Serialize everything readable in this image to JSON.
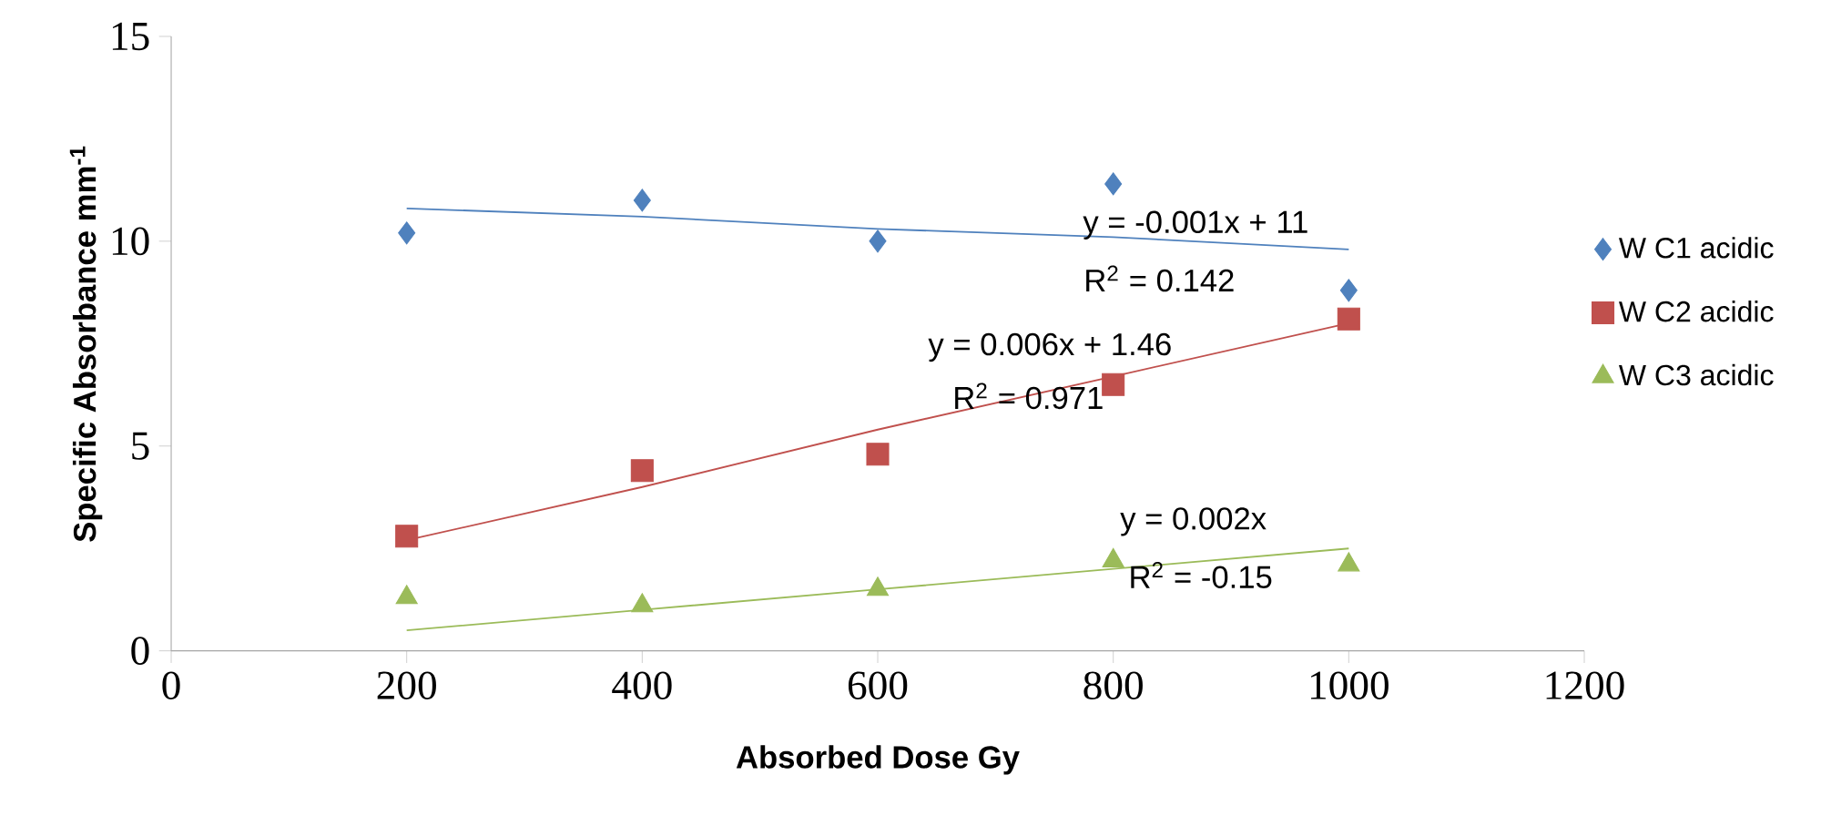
{
  "chart_data": {
    "type": "scatter",
    "xlabel": "Absorbed Dose Gy",
    "ylabel": "Specific Absorbance mm$^{-1}$",
    "x": [
      200,
      400,
      600,
      800,
      1000
    ],
    "series": [
      {
        "name": "W C1 acidic",
        "color": "#4f81bd",
        "marker": "diamond",
        "values": [
          10.2,
          11.0,
          10.0,
          11.4,
          8.8
        ]
      },
      {
        "name": "W C2 acidic",
        "color": "#c0504d",
        "marker": "square",
        "values": [
          2.8,
          4.4,
          4.8,
          6.5,
          8.1
        ]
      },
      {
        "name": "W C3 acidic",
        "color": "#9bbb59",
        "marker": "triangle",
        "values": [
          1.3,
          1.1,
          1.5,
          2.2,
          2.1
        ]
      },
      {
        "type": "line",
        "color": "#4f81bd",
        "marker": "none",
        "values": [
          10.8,
          10.6,
          10.3,
          10.1,
          9.8
        ]
      },
      {
        "type": "line",
        "color": "#c0504d",
        "marker": "none",
        "values": [
          2.7,
          4.0,
          5.4,
          6.7,
          8.0
        ]
      },
      {
        "type": "line",
        "color": "#9bbb59",
        "marker": "none",
        "values": [
          0.5,
          1.0,
          1.5,
          2.0,
          2.5
        ]
      }
    ],
    "annotations": [
      "y = -0.001x + 11",
      "R$^{2}$ = 0.142",
      "y = 0.006x + 1.46",
      "R$^{2}$ = 0.971",
      "y = 0.002x",
      "R$^{2}$ = -0.15"
    ],
    "xlim": [
      0,
      1200
    ],
    "ylim": [
      0,
      15
    ],
    "xticks": [
      0,
      200,
      400,
      600,
      800,
      1000,
      1200
    ],
    "yticks": [
      0,
      5,
      10,
      15
    ],
    "legend": "right",
    "grid": false
  }
}
